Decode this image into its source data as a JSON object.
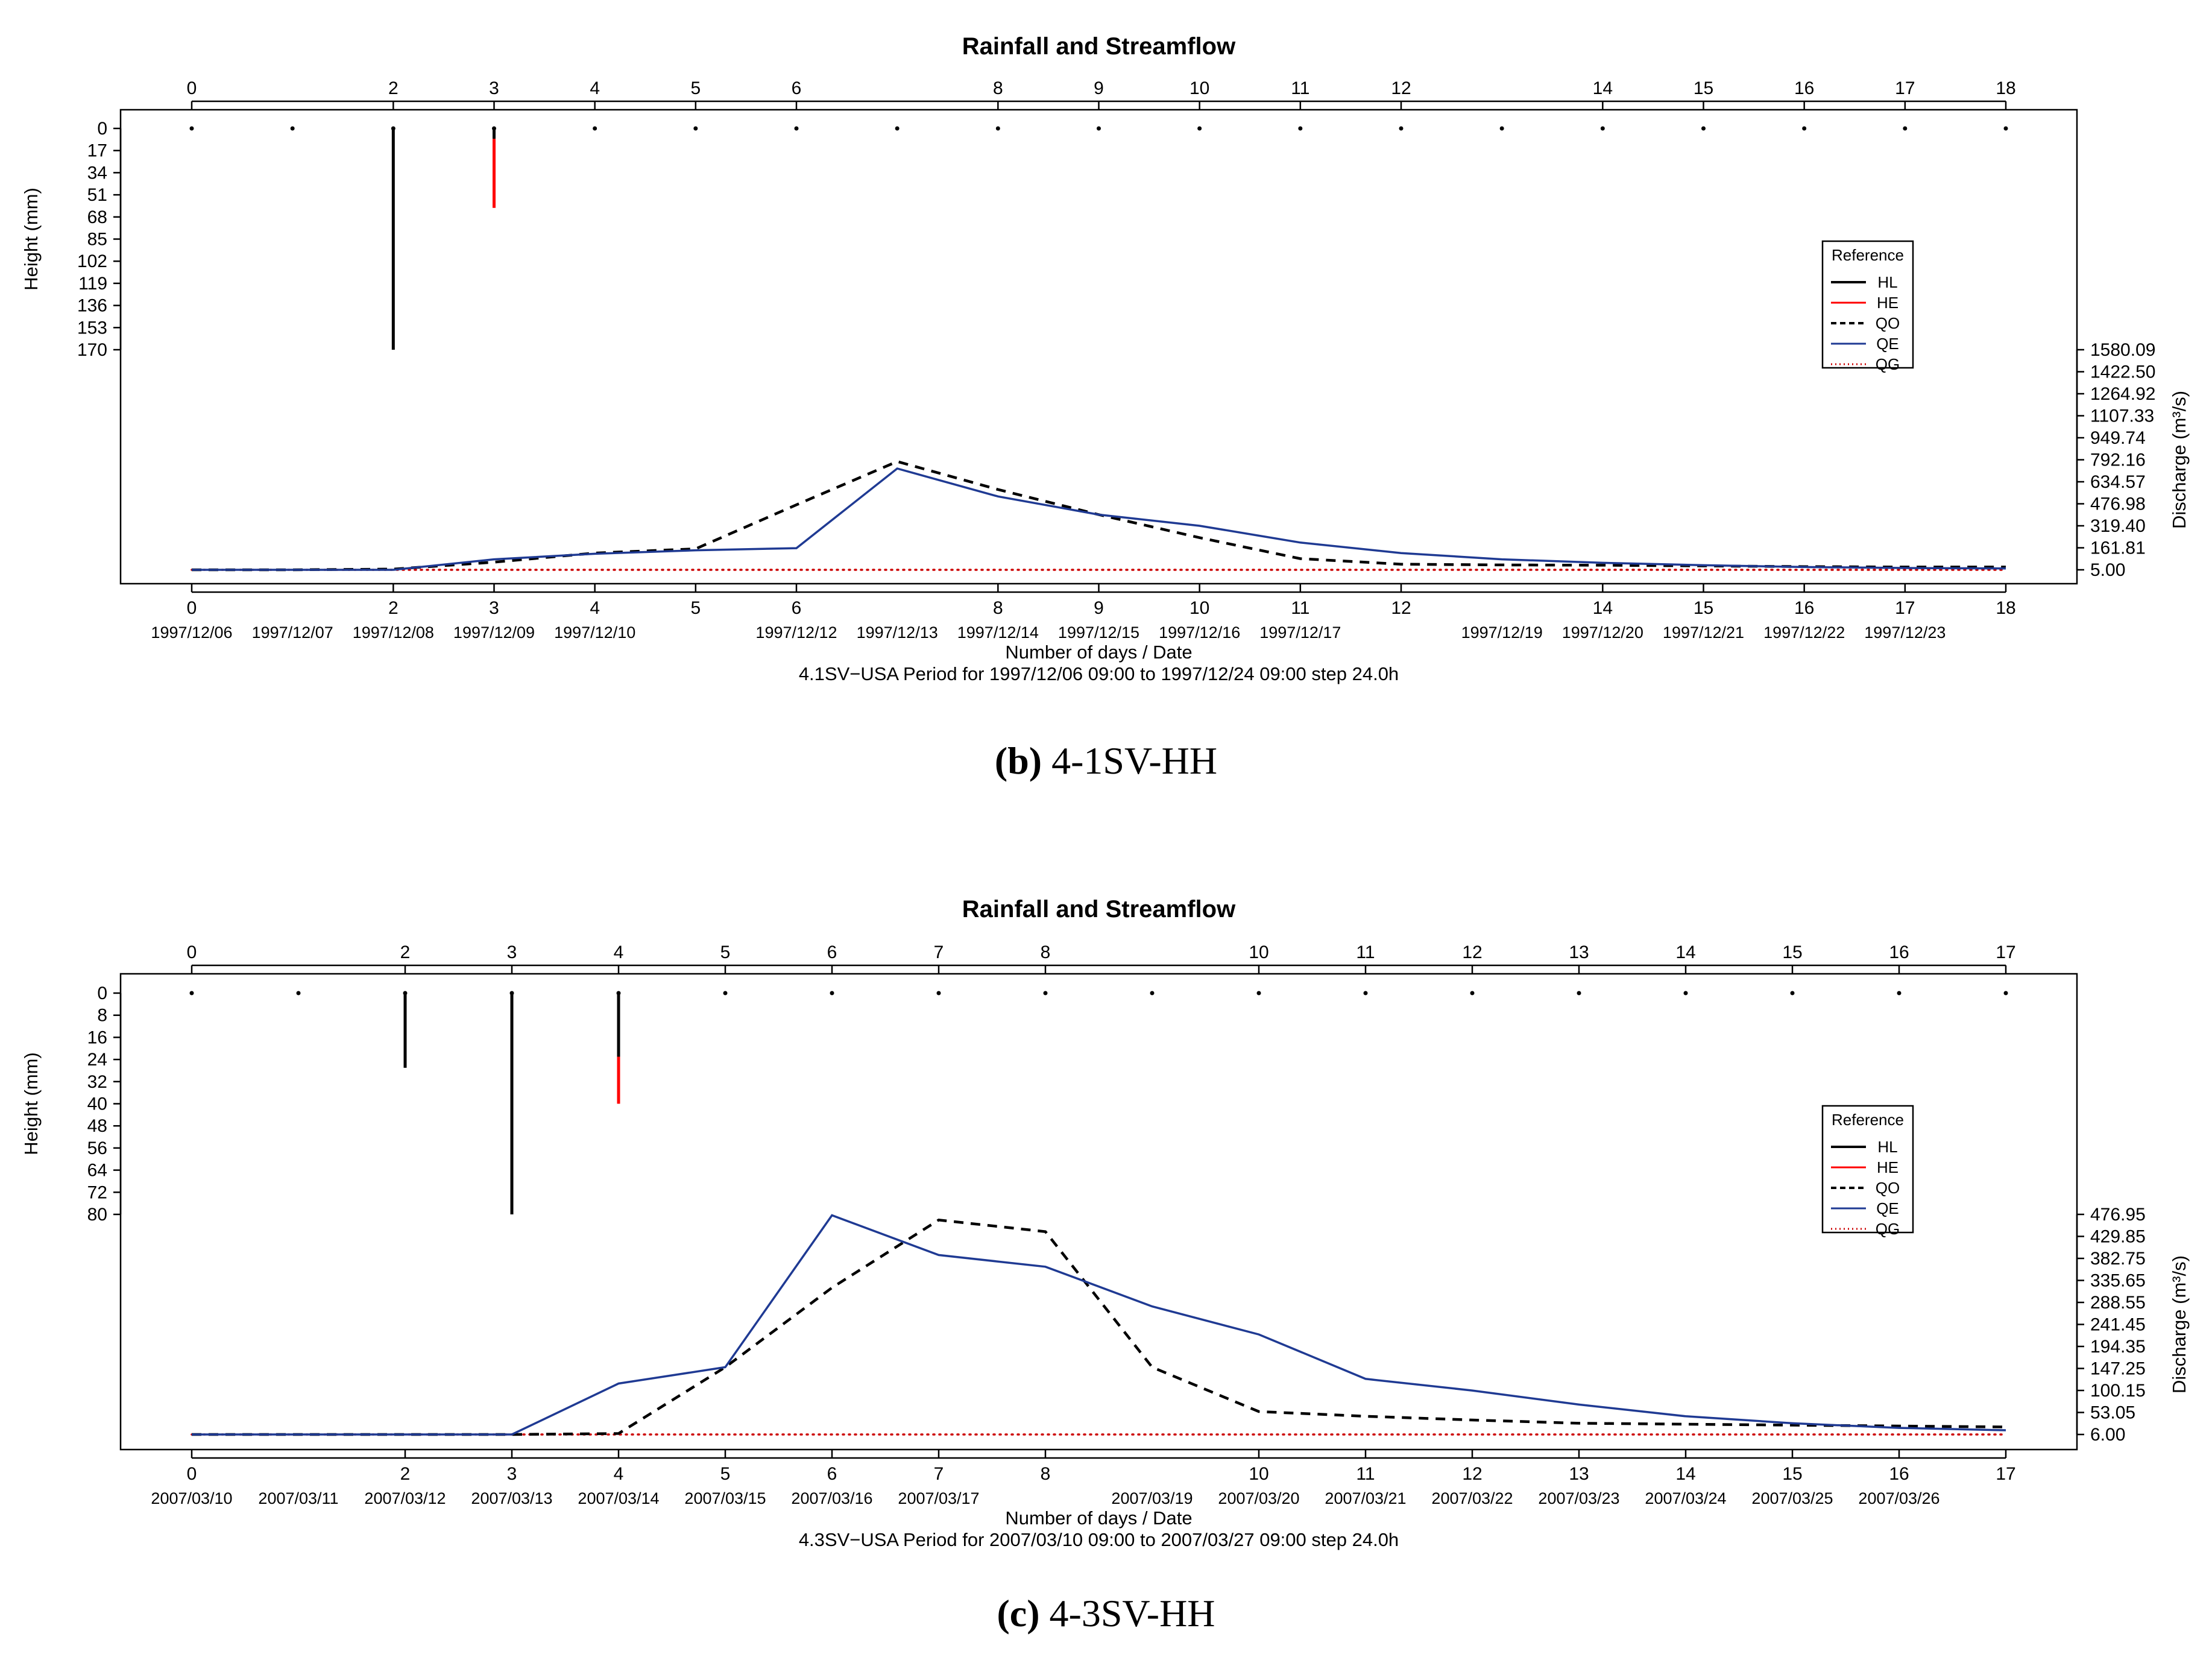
{
  "chart_data": [
    {
      "id": "b",
      "type": "line",
      "title": "Rainfall and Streamflow",
      "xlabel": "Number of days / Date",
      "subtitle": "4.1SV−USA Period for 1997/12/06 09:00 to 1997/12/24 09:00 step 24.0h",
      "caption_letter": "(b)",
      "caption_text": "4-1SV-HH",
      "xlim": [
        0,
        18
      ],
      "x_ticks": [
        0,
        2,
        3,
        4,
        5,
        6,
        8,
        9,
        10,
        11,
        12,
        14,
        15,
        16,
        17,
        18
      ],
      "x_tick_labels": [
        "0",
        "2",
        "3",
        "4",
        "5",
        "6",
        "8",
        "9",
        "10",
        "11",
        "12",
        "14",
        "15",
        "16",
        "17",
        "18"
      ],
      "date_ticks": [
        0,
        1,
        2,
        3,
        4,
        6,
        7,
        8,
        9,
        10,
        11,
        13,
        14,
        15,
        16,
        17
      ],
      "date_labels": [
        "1997/12/06",
        "1997/12/07",
        "1997/12/08",
        "1997/12/09",
        "1997/12/10",
        "1997/12/12",
        "1997/12/13",
        "1997/12/14",
        "1997/12/15",
        "1997/12/16",
        "1997/12/17",
        "1997/12/19",
        "1997/12/20",
        "1997/12/21",
        "1997/12/22",
        "1997/12/23"
      ],
      "rain_axis": {
        "label": "Height (mm)",
        "ylim": [
          0,
          170
        ],
        "ticks": [
          "0",
          "17",
          "34",
          "51",
          "68",
          "85",
          "102",
          "119",
          "136",
          "153",
          "170"
        ]
      },
      "flow_axis": {
        "label": "Discharge (m³/s)",
        "ylim": [
          5.0,
          1580.09
        ],
        "ticks": [
          "5.00",
          "161.81",
          "319.40",
          "476.98",
          "634.57",
          "792.16",
          "949.74",
          "1107.33",
          "1264.92",
          "1422.50",
          "1580.09"
        ]
      },
      "rain_dots_x": [
        0,
        1,
        2,
        3,
        4,
        5,
        6,
        7,
        8,
        9,
        10,
        11,
        12,
        13,
        14,
        15,
        16,
        17,
        18
      ],
      "rain_bars": [
        {
          "series": "HL",
          "x": 2,
          "from": 0,
          "to": 170
        },
        {
          "series": "HL",
          "x": 3,
          "from": 0,
          "to": 8
        },
        {
          "series": "HE",
          "x": 3,
          "from": 8,
          "to": 61
        }
      ],
      "series": [
        {
          "name": "QO",
          "x": [
            0,
            1,
            2,
            3,
            4,
            5,
            6,
            7,
            8,
            9,
            10,
            11,
            12,
            13,
            14,
            15,
            16,
            17,
            18
          ],
          "values": [
            5,
            5,
            10,
            60,
            125,
            155,
            470,
            780,
            580,
            400,
            235,
            85,
            45,
            40,
            38,
            33,
            28,
            25,
            25
          ]
        },
        {
          "name": "QE",
          "x": [
            0,
            1,
            2,
            3,
            4,
            5,
            6,
            7,
            8,
            9,
            10,
            11,
            12,
            13,
            14,
            15,
            16,
            17,
            18
          ],
          "values": [
            5,
            5,
            5,
            80,
            120,
            145,
            160,
            730,
            530,
            400,
            320,
            200,
            125,
            80,
            55,
            38,
            25,
            18,
            15
          ]
        },
        {
          "name": "QG",
          "x": [
            0,
            18
          ],
          "values": [
            5,
            5
          ]
        }
      ],
      "legend": {
        "title": "Reference",
        "entries": [
          "HL",
          "HE",
          "QO",
          "QE",
          "QG"
        ],
        "position": "right"
      }
    },
    {
      "id": "c",
      "type": "line",
      "title": "Rainfall and Streamflow",
      "xlabel": "Number of days / Date",
      "subtitle": "4.3SV−USA Period for 2007/03/10 09:00 to 2007/03/27 09:00 step 24.0h",
      "caption_letter": "(c)",
      "caption_text": "4-3SV-HH",
      "xlim": [
        0,
        17
      ],
      "x_ticks": [
        0,
        2,
        3,
        4,
        5,
        6,
        7,
        8,
        10,
        11,
        12,
        13,
        14,
        15,
        16,
        17
      ],
      "x_tick_labels": [
        "0",
        "2",
        "3",
        "4",
        "5",
        "6",
        "7",
        "8",
        "10",
        "11",
        "12",
        "13",
        "14",
        "15",
        "16",
        "17"
      ],
      "date_ticks": [
        0,
        1,
        2,
        3,
        4,
        5,
        6,
        7,
        9,
        10,
        11,
        12,
        13,
        14,
        15,
        16
      ],
      "date_labels": [
        "2007/03/10",
        "2007/03/11",
        "2007/03/12",
        "2007/03/13",
        "2007/03/14",
        "2007/03/15",
        "2007/03/16",
        "2007/03/17",
        "2007/03/19",
        "2007/03/20",
        "2007/03/21",
        "2007/03/22",
        "2007/03/23",
        "2007/03/24",
        "2007/03/25",
        "2007/03/26"
      ],
      "rain_axis": {
        "label": "Height (mm)",
        "ylim": [
          0,
          80
        ],
        "ticks": [
          "0",
          "8",
          "16",
          "24",
          "32",
          "40",
          "48",
          "56",
          "64",
          "72",
          "80"
        ]
      },
      "flow_axis": {
        "label": "Discharge (m³/s)",
        "ylim": [
          6.0,
          476.95
        ],
        "ticks": [
          "6.00",
          "53.05",
          "100.15",
          "147.25",
          "194.35",
          "241.45",
          "288.55",
          "335.65",
          "382.75",
          "429.85",
          "476.95"
        ]
      },
      "rain_dots_x": [
        0,
        1,
        2,
        3,
        4,
        5,
        6,
        7,
        8,
        9,
        10,
        11,
        12,
        13,
        14,
        15,
        16,
        17
      ],
      "rain_bars": [
        {
          "series": "HL",
          "x": 2,
          "from": 0,
          "to": 27
        },
        {
          "series": "HL",
          "x": 3,
          "from": 0,
          "to": 80
        },
        {
          "series": "HL",
          "x": 4,
          "from": 0,
          "to": 23
        },
        {
          "series": "HE",
          "x": 4,
          "from": 23,
          "to": 40
        }
      ],
      "series": [
        {
          "name": "QO",
          "x": [
            0,
            1,
            2,
            3,
            4,
            5,
            6,
            7,
            8,
            9,
            10,
            11,
            12,
            13,
            14,
            15,
            16,
            17
          ],
          "values": [
            6,
            6,
            6,
            6,
            8,
            150,
            320,
            465,
            440,
            150,
            55,
            45,
            37,
            30,
            28,
            26,
            24,
            22
          ]
        },
        {
          "name": "QE",
          "x": [
            0,
            1,
            2,
            3,
            4,
            5,
            6,
            7,
            8,
            9,
            10,
            11,
            12,
            13,
            14,
            15,
            16,
            17
          ],
          "values": [
            6,
            6,
            6,
            6,
            115,
            150,
            475,
            390,
            365,
            280,
            220,
            125,
            100,
            70,
            45,
            30,
            20,
            15
          ]
        },
        {
          "name": "QG",
          "x": [
            0,
            17
          ],
          "values": [
            6,
            6
          ]
        }
      ],
      "legend": {
        "title": "Reference",
        "entries": [
          "HL",
          "HE",
          "QO",
          "QE",
          "QG"
        ],
        "position": "right"
      }
    }
  ],
  "colors": {
    "HL": "#000000",
    "HE": "#ff0000",
    "QO": "#000000",
    "QE": "#1f3a93",
    "QG": "#cc0000"
  }
}
